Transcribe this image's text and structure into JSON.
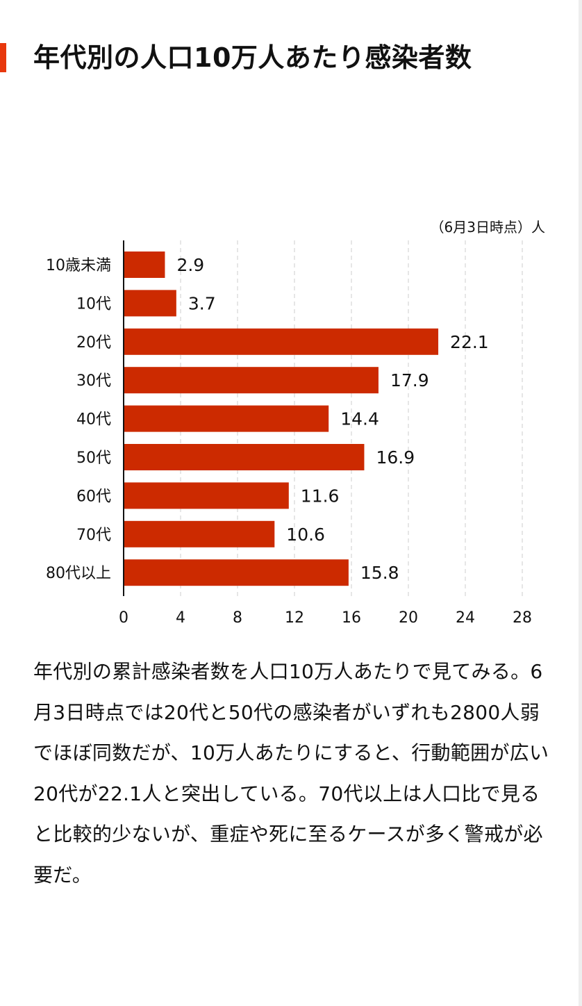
{
  "title": "年代別の人口10万人あたり感染者数",
  "description": "年代別の累計感染者数を人口10万人あたりで見てみる。6月3日時点では20代と50代の感染者がいずれも2800人弱でほぼ同数だが、10万人あたりにすると、行動範囲が広い20代が22.1人と突出している。70代以上は人口比で見ると比較的少ないが、重症や死に至るケースが多く警戒が必要だ。",
  "colors": {
    "accent": "#e8380d",
    "bar": "#cc2a00",
    "text": "#111111",
    "grid": "#dddddd"
  },
  "chart_data": {
    "type": "bar",
    "orientation": "horizontal",
    "unit_note": "（6月3日時点）人",
    "categories": [
      "10歳未満",
      "10代",
      "20代",
      "30代",
      "40代",
      "50代",
      "60代",
      "70代",
      "80代以上"
    ],
    "values": [
      2.9,
      3.7,
      22.1,
      17.9,
      14.4,
      16.9,
      11.6,
      10.6,
      15.8
    ],
    "value_labels": [
      "2.9",
      "3.7",
      "22.1",
      "17.9",
      "14.4",
      "16.9",
      "11.6",
      "10.6",
      "15.8"
    ],
    "xlim": [
      0,
      28
    ],
    "xticks": [
      0,
      4,
      8,
      12,
      16,
      20,
      24,
      28
    ],
    "grid": true,
    "grid_style": "dashed vertical"
  }
}
